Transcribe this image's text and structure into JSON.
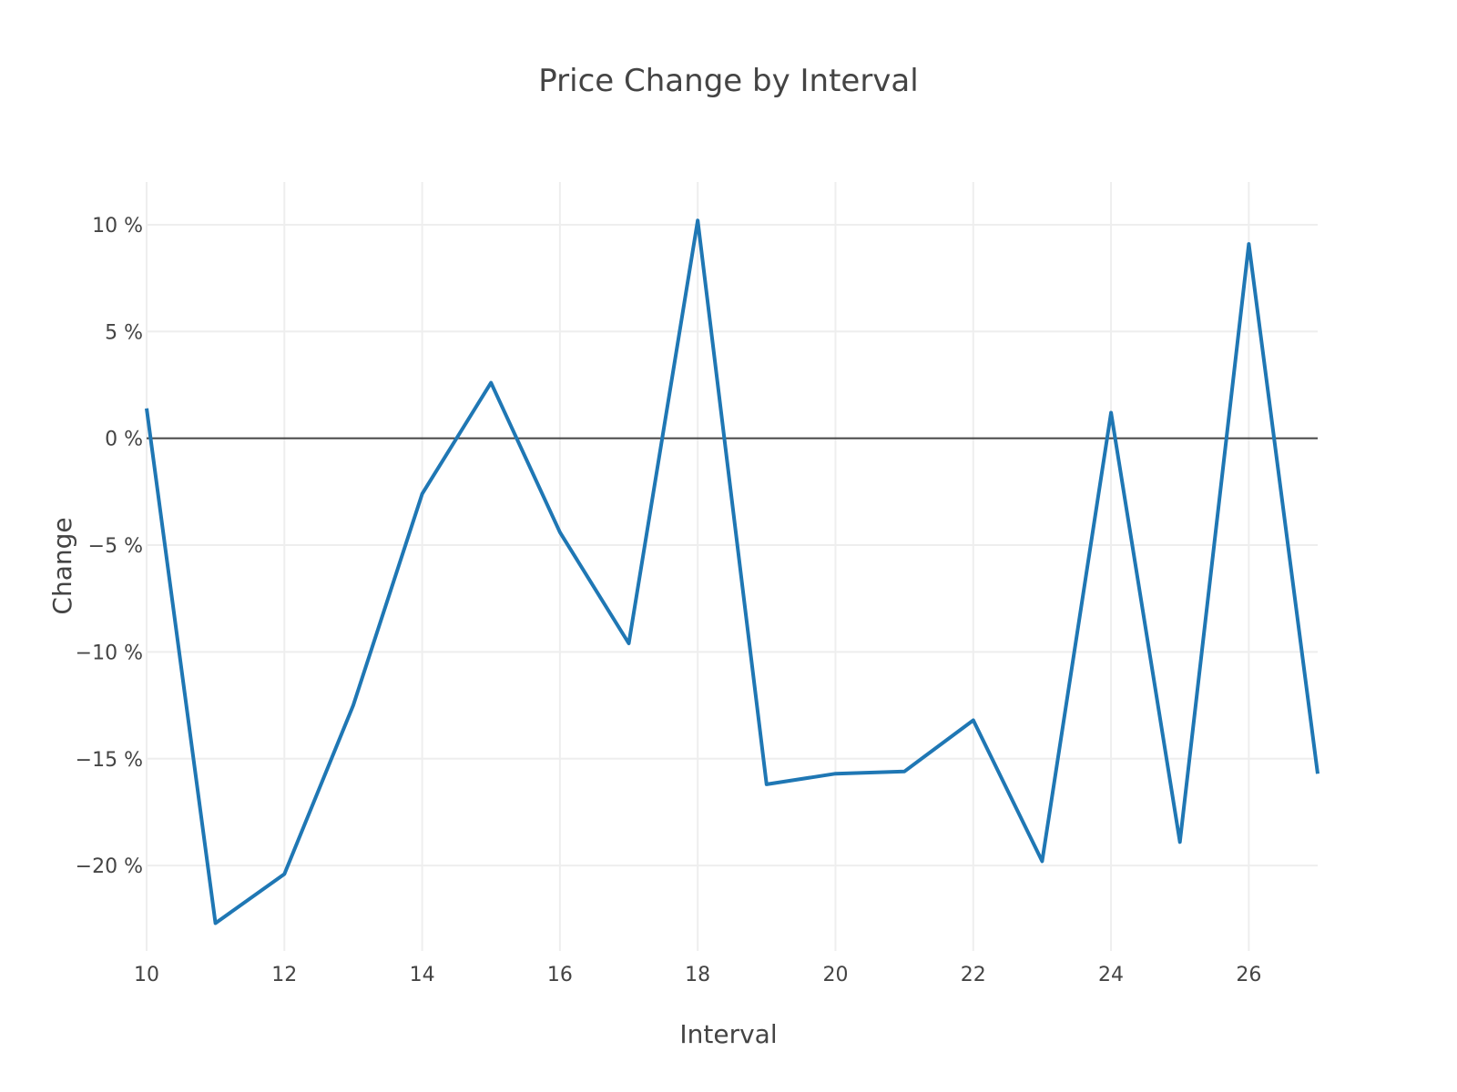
{
  "chart_data": {
    "type": "line",
    "title": "Price Change by Interval",
    "xlabel": "Interval",
    "ylabel": "Change",
    "xlim": [
      10,
      27
    ],
    "ylim": [
      -24,
      12
    ],
    "x_ticks": [
      10,
      12,
      14,
      16,
      18,
      20,
      22,
      24,
      26
    ],
    "y_ticks": [
      10,
      5,
      0,
      -5,
      -10,
      -15,
      -20
    ],
    "y_tick_labels": [
      "10 %",
      "5 %",
      "0 %",
      "−5 %",
      "−10 %",
      "−15 %",
      "−20 %"
    ],
    "grid": true,
    "zero_line": true,
    "color": "#1f77b4",
    "series": [
      {
        "x": [
          10,
          11,
          12,
          13,
          14,
          15,
          16,
          17,
          18,
          19,
          20,
          21,
          22,
          23,
          24,
          25,
          26,
          27
        ],
        "y": [
          1.4,
          -22.7,
          -20.4,
          -12.5,
          -2.6,
          2.6,
          -4.4,
          -9.6,
          10.2,
          -16.2,
          -15.7,
          -15.6,
          -13.2,
          -19.8,
          1.2,
          -18.9,
          9.1,
          -15.7
        ]
      }
    ]
  }
}
